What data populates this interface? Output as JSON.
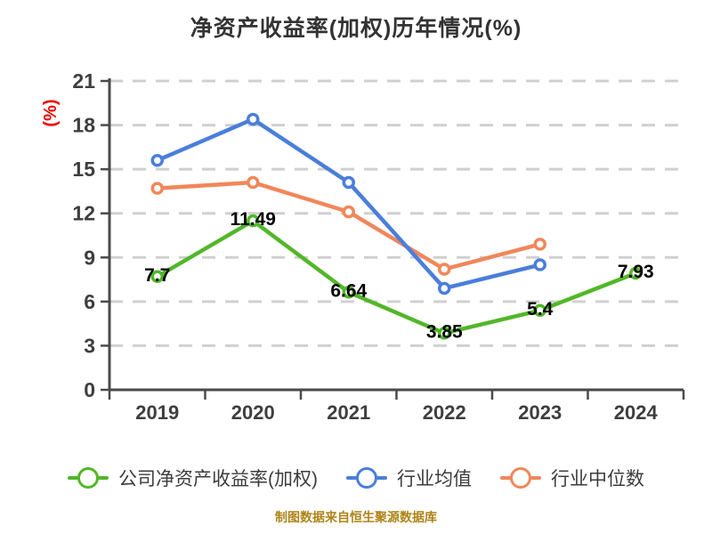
{
  "chart_data": {
    "type": "line",
    "title": "净资产收益率(加权)历年情况(%)",
    "ylabel": "(%)",
    "xlabel": "",
    "categories": [
      "2019",
      "2020",
      "2021",
      "2022",
      "2023",
      "2024"
    ],
    "series": [
      {
        "name": "公司净资产收益率(加权)",
        "color": "#52B72A",
        "values": [
          7.7,
          11.49,
          6.64,
          3.85,
          5.4,
          7.93
        ],
        "data_labels": true
      },
      {
        "name": "行业均值",
        "color": "#4A7EDB",
        "values": [
          15.6,
          18.4,
          14.1,
          6.9,
          8.5,
          null
        ],
        "data_labels": false
      },
      {
        "name": "行业中位数",
        "color": "#F0875A",
        "values": [
          13.7,
          14.1,
          12.1,
          8.2,
          9.9,
          null
        ],
        "data_labels": false
      }
    ],
    "ylim": [
      0,
      21
    ],
    "yticks": [
      0,
      3,
      6,
      9,
      12,
      15,
      18,
      21
    ],
    "grid": "horizontal-dashed",
    "legend_position": "bottom"
  },
  "footer": {
    "text": "制图数据来自恒生聚源数据库"
  },
  "colors": {
    "axis": "#4A4A4A",
    "grid": "#D0D0D0",
    "tick_text": "#3E3E3E",
    "ylabel_red": "#EC0000",
    "data_label": "#000000",
    "footer_gold": "#AE8418",
    "title_text": "#333333",
    "background": "#FFFFFF"
  }
}
